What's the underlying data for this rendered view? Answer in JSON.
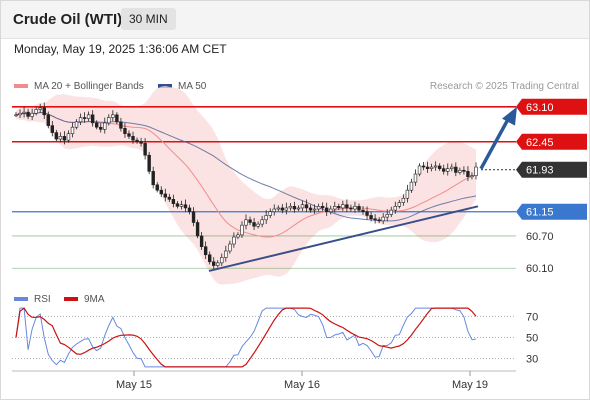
{
  "header": {
    "instrument": "Crude Oil (WTI)",
    "interval": "30 MIN"
  },
  "datetime": "Monday, May 19, 2025 1:36:06 AM CET",
  "legend": {
    "ma20": "MA 20 + Bollinger Bands",
    "ma50": "MA 50",
    "rsi": "RSI",
    "rsi_ma": "9MA"
  },
  "copyright": "Research © 2025 Trading Central",
  "colors": {
    "ma20": "#f08c8c",
    "ma50": "#4b5f9a",
    "band_fill": "#fbd9da",
    "resistance": "#dd1111",
    "support": "#3a78d0",
    "target": "#2a8a2a",
    "candle": "#222222",
    "rsi": "#6688dd",
    "rsi_ma": "#cc1111",
    "current": "#333333",
    "arrow": "#2a5a9a"
  },
  "chart_data": {
    "type": "line",
    "title": "Crude Oil (WTI)",
    "xlabel": "",
    "ylabel": "",
    "x_ticks": [
      "May 15",
      "May 16",
      "May 19"
    ],
    "ylim": [
      59.9,
      63.3
    ],
    "series": [
      {
        "name": "Price",
        "values": [
          62.95,
          62.98,
          63.0,
          62.92,
          62.98,
          63.05,
          63.08,
          62.95,
          62.75,
          62.62,
          62.5,
          62.55,
          62.48,
          62.6,
          62.72,
          62.82,
          62.9,
          62.88,
          62.95,
          62.8,
          62.72,
          62.68,
          62.8,
          62.9,
          62.95,
          62.82,
          62.7,
          62.6,
          62.55,
          62.48,
          62.45,
          62.42,
          62.2,
          61.9,
          61.65,
          61.55,
          61.48,
          61.42,
          61.38,
          61.3,
          61.25,
          61.28,
          61.22,
          61.15,
          60.95,
          60.7,
          60.5,
          60.35,
          60.22,
          60.15,
          60.2,
          60.3,
          60.42,
          60.55,
          60.68,
          60.72,
          60.9,
          61.0,
          60.95,
          60.88,
          60.92,
          61.0,
          61.08,
          61.15,
          61.2,
          61.22,
          61.18,
          61.22,
          61.25,
          61.2,
          61.22,
          61.28,
          61.22,
          61.18,
          61.2,
          61.25,
          61.22,
          61.15,
          61.2,
          61.25,
          61.22,
          61.28,
          61.22,
          61.2,
          61.25,
          61.18,
          61.15,
          61.08,
          61.02,
          61.0,
          60.98,
          61.05,
          61.1,
          61.18,
          61.25,
          61.32,
          61.4,
          61.55,
          61.7,
          61.85,
          62.0,
          61.98,
          61.95,
          61.98,
          62.0,
          61.95,
          61.9,
          61.95,
          61.98,
          61.88,
          61.92,
          61.9,
          61.8,
          61.82,
          61.98
        ]
      },
      {
        "name": "MA 20",
        "values": []
      },
      {
        "name": "MA 50",
        "values": []
      }
    ],
    "levels": [
      {
        "label": "63.10",
        "value": 63.1,
        "kind": "resistance"
      },
      {
        "label": "62.45",
        "value": 62.45,
        "kind": "resistance"
      },
      {
        "label": "61.93",
        "value": 61.93,
        "kind": "current"
      },
      {
        "label": "61.15",
        "value": 61.15,
        "kind": "support"
      },
      {
        "label": "60.70",
        "value": 60.7,
        "kind": "target"
      },
      {
        "label": "60.10",
        "value": 60.1,
        "kind": "target"
      }
    ],
    "rsi": {
      "ylim": [
        20,
        80
      ],
      "ticks": [
        70,
        50,
        30
      ]
    }
  }
}
